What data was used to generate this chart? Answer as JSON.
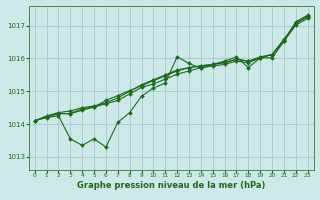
{
  "title": "Graphe pression niveau de la mer (hPa)",
  "background_color": "#cce8e8",
  "grid_color": "#aacccc",
  "line_color": "#1a6b1a",
  "xlim": [
    -0.5,
    23.5
  ],
  "ylim": [
    1012.6,
    1017.6
  ],
  "yticks": [
    1013,
    1014,
    1015,
    1016,
    1017
  ],
  "xticks": [
    0,
    1,
    2,
    3,
    4,
    5,
    6,
    7,
    8,
    9,
    10,
    11,
    12,
    13,
    14,
    15,
    16,
    17,
    18,
    19,
    20,
    21,
    22,
    23
  ],
  "series": [
    [
      1014.1,
      1014.2,
      1014.25,
      1013.55,
      1013.35,
      1013.55,
      1013.3,
      1014.05,
      1014.35,
      1014.85,
      1015.1,
      1015.25,
      1016.05,
      1015.85,
      1015.7,
      1015.82,
      1015.92,
      1016.05,
      1015.72,
      1016.02,
      1016.02,
      1016.52,
      1017.12,
      1017.32
    ],
    [
      1014.1,
      1014.22,
      1014.32,
      1014.32,
      1014.42,
      1014.52,
      1014.62,
      1014.72,
      1014.92,
      1015.12,
      1015.22,
      1015.37,
      1015.52,
      1015.62,
      1015.72,
      1015.77,
      1015.82,
      1015.92,
      1015.87,
      1016.02,
      1016.12,
      1016.52,
      1017.02,
      1017.22
    ],
    [
      1014.1,
      1014.22,
      1014.32,
      1014.32,
      1014.47,
      1014.52,
      1014.72,
      1014.87,
      1015.02,
      1015.17,
      1015.32,
      1015.47,
      1015.62,
      1015.72,
      1015.77,
      1015.82,
      1015.87,
      1015.97,
      1015.92,
      1016.02,
      1016.12,
      1016.57,
      1017.07,
      1017.27
    ],
    [
      1014.1,
      1014.25,
      1014.35,
      1014.4,
      1014.5,
      1014.55,
      1014.65,
      1014.8,
      1015.0,
      1015.2,
      1015.35,
      1015.5,
      1015.65,
      1015.72,
      1015.78,
      1015.82,
      1015.88,
      1015.98,
      1015.92,
      1016.05,
      1016.12,
      1016.58,
      1017.08,
      1017.28
    ]
  ]
}
